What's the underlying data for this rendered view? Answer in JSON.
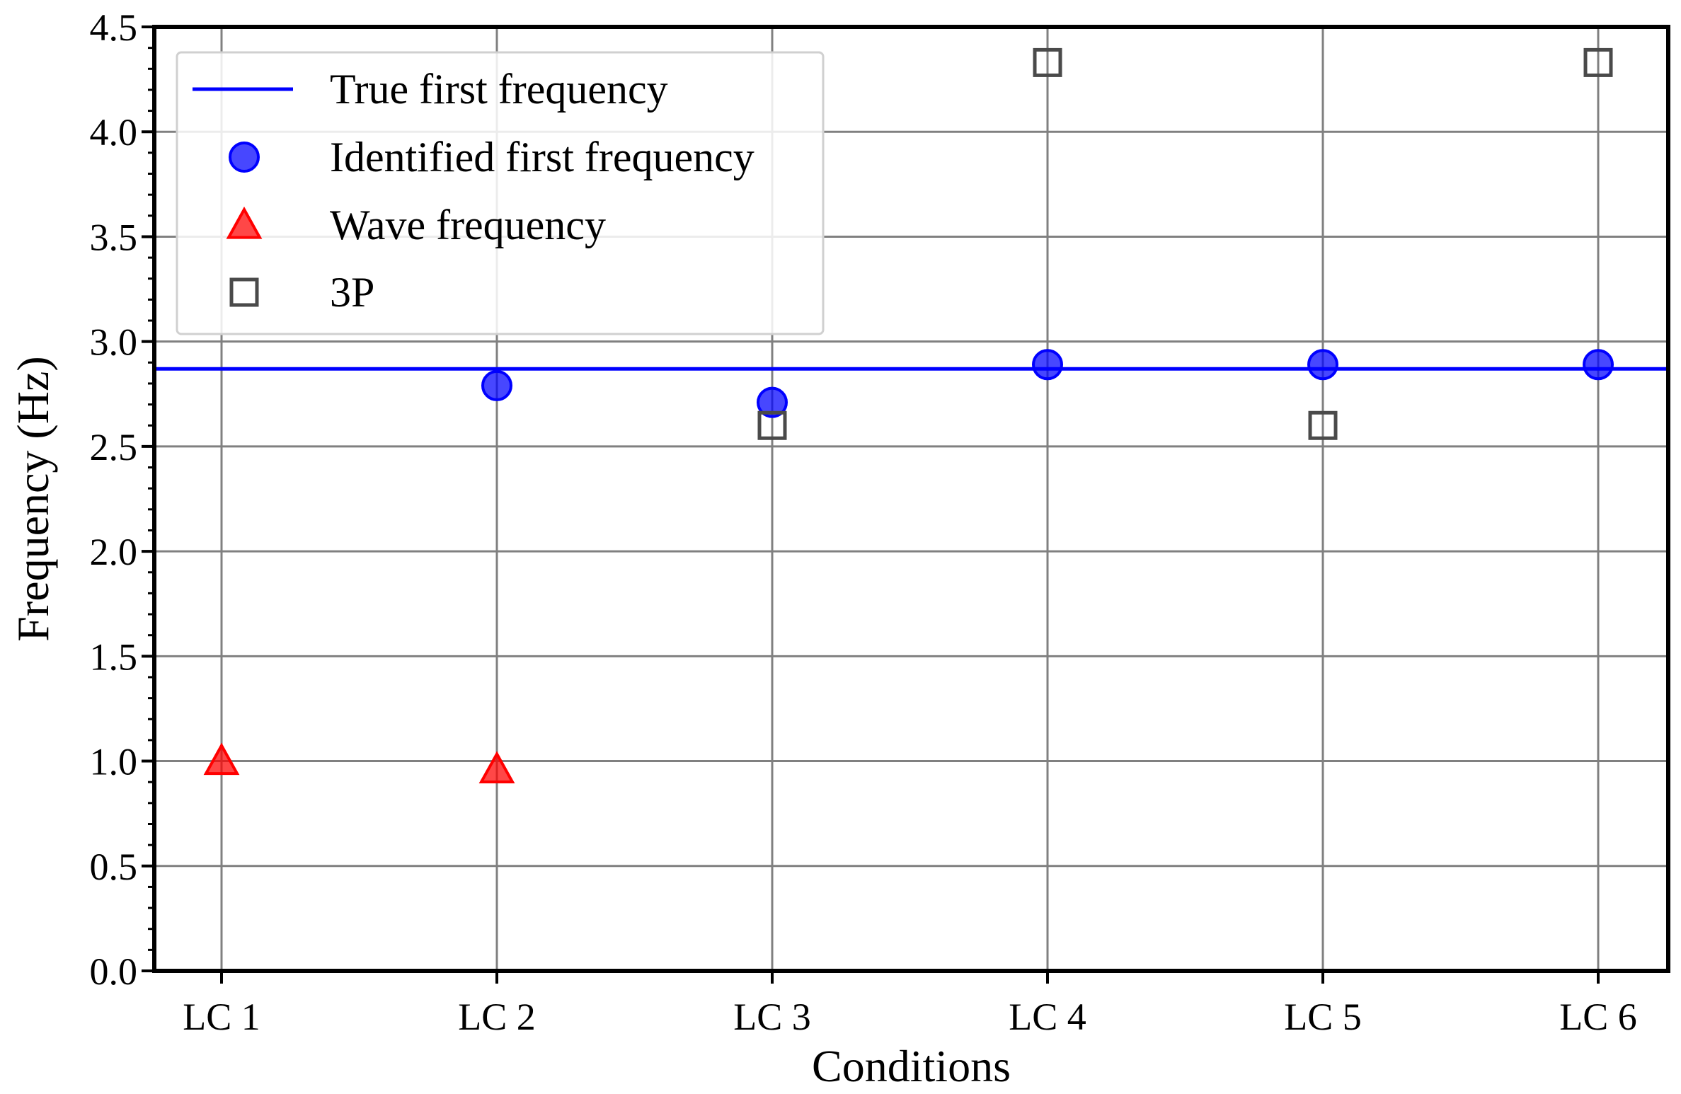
{
  "chart_data": {
    "type": "scatter",
    "title": "",
    "xlabel": "Conditions",
    "ylabel": "Frequency (Hz)",
    "categories": [
      "LC 1",
      "LC 2",
      "LC 3",
      "LC 4",
      "LC 5",
      "LC 6"
    ],
    "ylim": [
      0,
      4.5
    ],
    "yticks": [
      "0.0",
      "0.5",
      "1.0",
      "1.5",
      "2.0",
      "2.5",
      "3.0",
      "3.5",
      "4.0",
      "4.5"
    ],
    "grid": true,
    "legend_position": "top-left",
    "true_first_frequency": 2.87,
    "series": [
      {
        "name": "True first frequency",
        "kind": "hline",
        "color": "#0000ff",
        "value": 2.87
      },
      {
        "name": "Identified first frequency",
        "kind": "circle",
        "color": "#0000ff",
        "values": [
          null,
          2.79,
          2.71,
          2.89,
          2.89,
          2.89
        ]
      },
      {
        "name": "Wave frequency",
        "kind": "triangle",
        "color": "#ff0000",
        "values": [
          1.0,
          0.96,
          null,
          null,
          null,
          null
        ]
      },
      {
        "name": "3P",
        "kind": "square",
        "color": "#4a4a4a",
        "values": [
          null,
          null,
          2.6,
          4.33,
          2.6,
          4.33
        ]
      }
    ]
  }
}
